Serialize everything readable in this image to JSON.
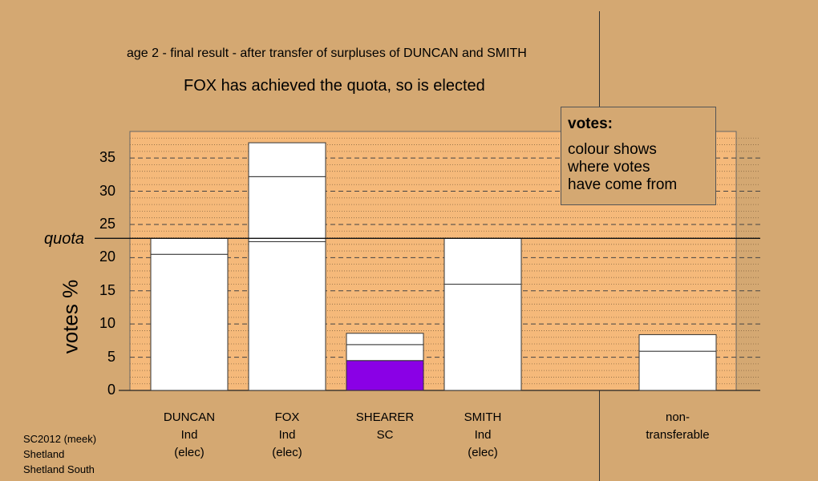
{
  "header": {
    "round_title": "age 2 - final result - after transfer of surpluses of DUNCAN and SMITH",
    "status": "FOX has achieved the quota, so is elected"
  },
  "legend": {
    "title": "votes:",
    "lines": [
      "colour shows",
      "where votes",
      "have come from"
    ]
  },
  "footer": {
    "lines": [
      "SC2012 (meek)",
      "Shetland",
      "Shetland South"
    ]
  },
  "colors": {
    "background": "#D4A872",
    "plot_area": "#F5B97A",
    "bar_fill": "#FFFFFF",
    "shearer_segment": "#8A00E6"
  },
  "chart_data": {
    "type": "bar",
    "stacked": true,
    "title": "",
    "ylabel": "votes %",
    "ylim": [
      0,
      39
    ],
    "yticks": [
      0,
      5,
      10,
      15,
      20,
      25,
      30,
      35
    ],
    "grid": true,
    "quota": {
      "label": "quota",
      "value": 22.9
    },
    "categories": [
      {
        "name": "DUNCAN",
        "party": "Ind",
        "note": "(elec)"
      },
      {
        "name": "FOX",
        "party": "Ind",
        "note": "(elec)"
      },
      {
        "name": "SHEARER",
        "party": "SC",
        "note": ""
      },
      {
        "name": "SMITH",
        "party": "Ind",
        "note": "(elec)"
      },
      {
        "name": "non-",
        "party": "transferable",
        "note": ""
      }
    ],
    "bars": [
      {
        "category": "DUNCAN",
        "segments": [
          {
            "value": 20.5,
            "color": "#FFFFFF"
          },
          {
            "value": 2.4,
            "color": "#FFFFFF"
          }
        ]
      },
      {
        "category": "FOX",
        "segments": [
          {
            "value": 22.4,
            "color": "#FFFFFF"
          },
          {
            "value": 9.8,
            "color": "#FFFFFF"
          },
          {
            "value": 5.1,
            "color": "#FFFFFF"
          }
        ]
      },
      {
        "category": "SHEARER",
        "segments": [
          {
            "value": 4.5,
            "color": "#8A00E6"
          },
          {
            "value": 2.4,
            "color": "#FFFFFF"
          },
          {
            "value": 1.7,
            "color": "#FFFFFF"
          }
        ]
      },
      {
        "category": "SMITH",
        "segments": [
          {
            "value": 16.0,
            "color": "#FFFFFF"
          },
          {
            "value": 6.9,
            "color": "#FFFFFF"
          }
        ]
      },
      {
        "category": "non-transferable",
        "segments": [
          {
            "value": 5.9,
            "color": "#FFFFFF"
          },
          {
            "value": 2.5,
            "color": "#FFFFFF"
          }
        ]
      }
    ]
  }
}
